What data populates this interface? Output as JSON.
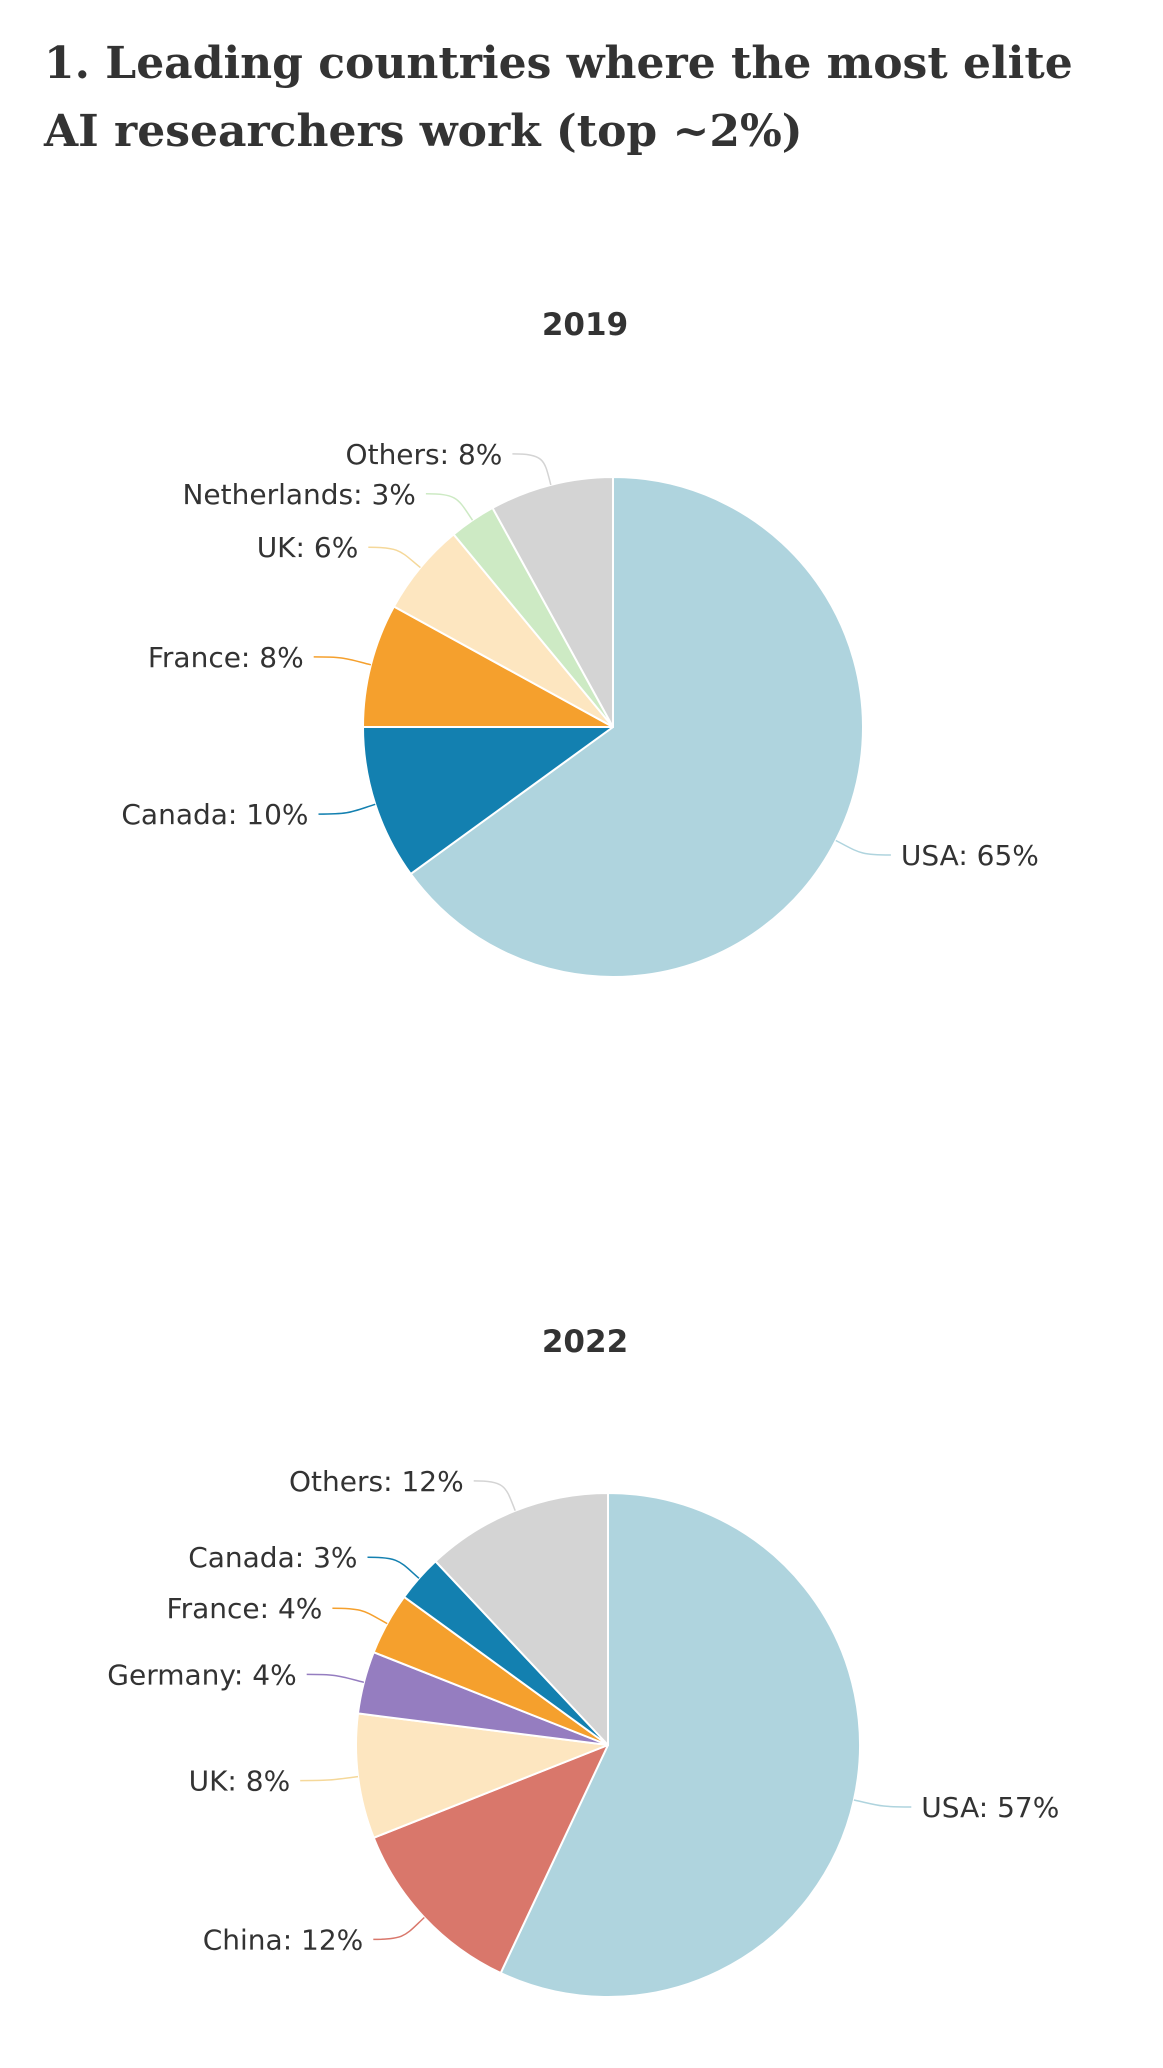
{
  "page": {
    "title": "1. Leading countries where the most elite AI researchers work (top ~2%)"
  },
  "chart_data": [
    {
      "type": "pie",
      "title": "2019",
      "start": "top",
      "direction": "clockwise",
      "slices": [
        {
          "name": "USA",
          "value": 65,
          "label": "USA: 65%",
          "color": "#afd4de"
        },
        {
          "name": "Canada",
          "value": 10,
          "label": "Canada: 10%",
          "color": "#1380b0"
        },
        {
          "name": "France",
          "value": 8,
          "label": "France: 8%",
          "color": "#f5a02d"
        },
        {
          "name": "UK",
          "value": 6,
          "label": "UK: 6%",
          "color": "#fde6c0"
        },
        {
          "name": "Netherlands",
          "value": 3,
          "label": "Netherlands: 3%",
          "color": "#cdeac4"
        },
        {
          "name": "Others",
          "value": 8,
          "label": "Others: 8%",
          "color": "#d4d4d4"
        }
      ]
    },
    {
      "type": "pie",
      "title": "2022",
      "start": "top",
      "direction": "clockwise",
      "slices": [
        {
          "name": "USA",
          "value": 57,
          "label": "USA: 57%",
          "color": "#afd4de"
        },
        {
          "name": "China",
          "value": 12,
          "label": "China: 12%",
          "color": "#d9776b"
        },
        {
          "name": "UK",
          "value": 8,
          "label": "UK: 8%",
          "color": "#fde6c0"
        },
        {
          "name": "Germany",
          "value": 4,
          "label": "Germany: 4%",
          "color": "#957dc0"
        },
        {
          "name": "France",
          "value": 4,
          "label": "France: 4%",
          "color": "#f5a02d"
        },
        {
          "name": "Canada",
          "value": 3,
          "label": "Canada: 3%",
          "color": "#1380b0"
        },
        {
          "name": "Others",
          "value": 12,
          "label": "Others: 12%",
          "color": "#d4d4d4"
        }
      ]
    }
  ]
}
